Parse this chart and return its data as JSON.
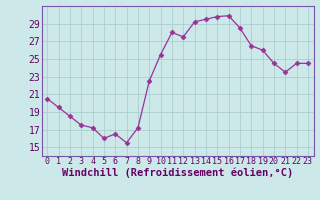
{
  "x": [
    0,
    1,
    2,
    3,
    4,
    5,
    6,
    7,
    8,
    9,
    10,
    11,
    12,
    13,
    14,
    15,
    16,
    17,
    18,
    19,
    20,
    21,
    22,
    23
  ],
  "y": [
    20.5,
    19.5,
    18.5,
    17.5,
    17.2,
    16.0,
    16.5,
    15.5,
    17.2,
    22.5,
    25.5,
    28.0,
    27.5,
    29.2,
    29.5,
    29.8,
    29.9,
    28.5,
    26.5,
    26.0,
    24.5,
    23.5,
    24.5,
    24.5
  ],
  "line_color": "#993399",
  "marker": "D",
  "marker_size": 2.5,
  "bg_color": "#cce8e8",
  "grid_color": "#aad0d0",
  "xlabel": "Windchill (Refroidissement éolien,°C)",
  "xlabel_fontsize": 7.5,
  "tick_fontsize": 7,
  "ylim": [
    14,
    31
  ],
  "yticks": [
    15,
    17,
    19,
    21,
    23,
    25,
    27,
    29
  ],
  "xlim": [
    -0.5,
    23.5
  ],
  "xticks": [
    0,
    1,
    2,
    3,
    4,
    5,
    6,
    7,
    8,
    9,
    10,
    11,
    12,
    13,
    14,
    15,
    16,
    17,
    18,
    19,
    20,
    21,
    22,
    23
  ],
  "spine_color": "#7755aa"
}
